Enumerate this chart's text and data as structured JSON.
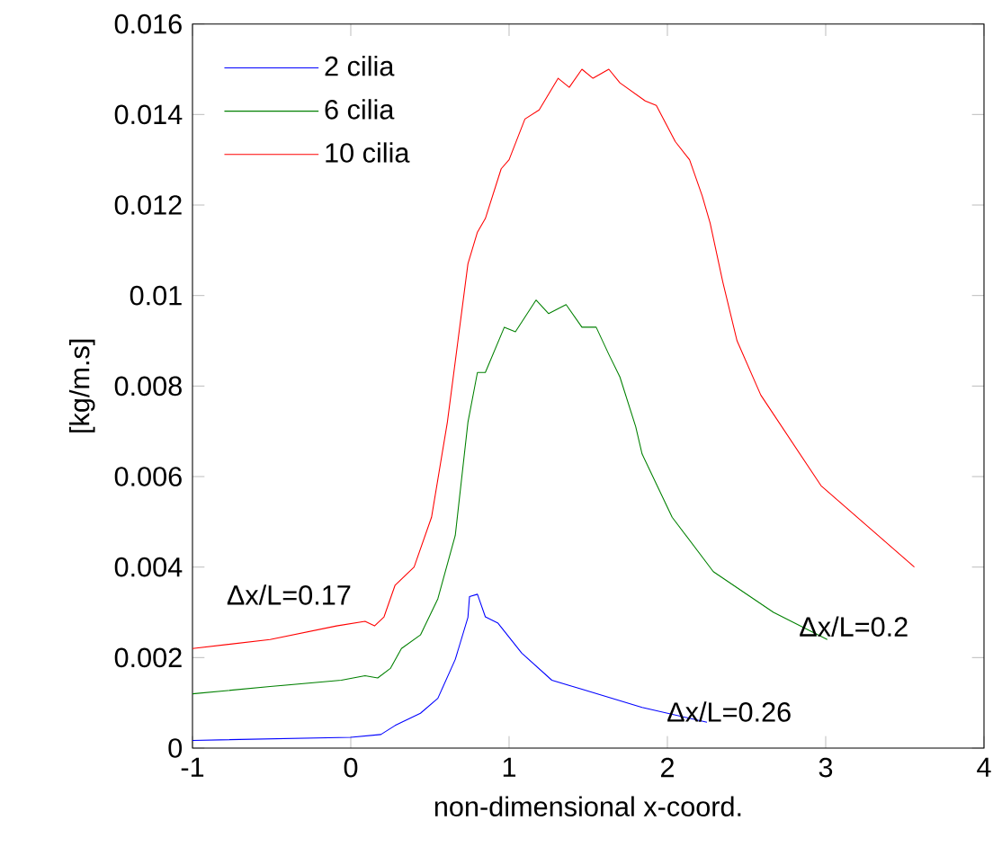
{
  "chart_data": {
    "type": "line",
    "xlabel": "non-dimensional x-coord.",
    "ylabel": "[kg/m.s]",
    "xlim": [
      -1,
      4
    ],
    "xticks": [
      -1,
      0,
      1,
      2,
      3,
      4
    ],
    "ylim": [
      0,
      0.016
    ],
    "yticks": [
      0,
      0.002,
      0.004,
      0.006,
      0.008,
      0.01,
      0.012,
      0.014,
      0.016
    ],
    "grid": false,
    "legend": "top left",
    "line_style": "solid",
    "series": [
      {
        "name": "2 cilia",
        "color": "#0000ff",
        "x": [
          -1,
          0,
          0.19,
          0.28,
          0.44,
          0.55,
          0.66,
          0.74,
          0.75,
          0.8,
          0.85,
          0.93,
          1.08,
          1.27,
          1.46,
          1.84,
          2.25
        ],
        "values": [
          0.00017,
          0.00024,
          0.0003,
          0.0005,
          0.00077,
          0.0011,
          0.00196,
          0.00289,
          0.00335,
          0.0034,
          0.0029,
          0.00276,
          0.0021,
          0.0015,
          0.0013,
          0.0009,
          0.00057
        ]
      },
      {
        "name": "6 cilia",
        "color": "#008000",
        "x": [
          -1,
          -0.51,
          -0.06,
          0.09,
          0.17,
          0.25,
          0.32,
          0.44,
          0.55,
          0.66,
          0.74,
          0.8,
          0.85,
          0.97,
          1.04,
          1.17,
          1.25,
          1.36,
          1.46,
          1.55,
          1.63,
          1.7,
          1.8,
          1.84,
          2.03,
          2.29,
          2.67,
          3.01
        ],
        "values": [
          0.0012,
          0.00136,
          0.0015,
          0.0016,
          0.00155,
          0.00176,
          0.0022,
          0.0025,
          0.0033,
          0.0047,
          0.0072,
          0.0083,
          0.0083,
          0.0093,
          0.0092,
          0.0099,
          0.0096,
          0.0098,
          0.0093,
          0.0093,
          0.0087,
          0.0082,
          0.0071,
          0.0065,
          0.0051,
          0.0039,
          0.003,
          0.0024
        ]
      },
      {
        "name": "10 cilia",
        "color": "#ff0000",
        "x": [
          -1,
          -0.51,
          -0.09,
          0.09,
          0.15,
          0.21,
          0.28,
          0.4,
          0.51,
          0.61,
          0.74,
          0.8,
          0.85,
          0.95,
          1.0,
          1.1,
          1.19,
          1.31,
          1.38,
          1.46,
          1.53,
          1.63,
          1.7,
          1.86,
          1.93,
          2.05,
          2.14,
          2.22,
          2.27,
          2.35,
          2.44,
          2.59,
          2.97,
          3.56
        ],
        "values": [
          0.0022,
          0.0024,
          0.0027,
          0.0028,
          0.0027,
          0.0029,
          0.0036,
          0.004,
          0.0051,
          0.0072,
          0.0107,
          0.0114,
          0.0117,
          0.0128,
          0.013,
          0.0139,
          0.0141,
          0.0148,
          0.0146,
          0.015,
          0.0148,
          0.015,
          0.0147,
          0.0143,
          0.0142,
          0.0134,
          0.013,
          0.0122,
          0.0116,
          0.0103,
          0.009,
          0.0078,
          0.0058,
          0.004
        ]
      }
    ],
    "annotations": [
      "Δx/L=0.17",
      "Δx/L=0.2",
      "Δx/L=0.26"
    ]
  }
}
